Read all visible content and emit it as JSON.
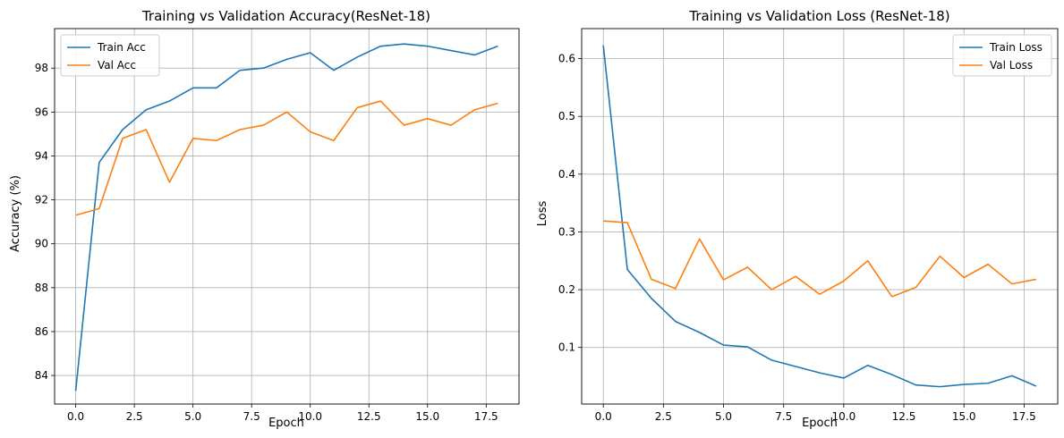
{
  "colors": {
    "train": "#1f77b4",
    "val": "#ff7f0e",
    "grid": "#b0b0b0"
  },
  "chart_data": [
    {
      "type": "line",
      "title": "Training vs Validation Accuracy(ResNet-18)",
      "xlabel": "Epoch",
      "ylabel": "Accuracy (%)",
      "x": [
        0,
        1,
        2,
        3,
        4,
        5,
        6,
        7,
        8,
        9,
        10,
        11,
        12,
        13,
        14,
        15,
        16,
        17,
        18
      ],
      "xlim": [
        -0.9,
        18.9
      ],
      "ylim": [
        82.7,
        99.8
      ],
      "xticks": [
        0,
        2.5,
        5,
        7.5,
        10,
        12.5,
        15,
        17.5
      ],
      "xtick_labels": [
        "0.0",
        "2.5",
        "5.0",
        "7.5",
        "10.0",
        "12.5",
        "15.0",
        "17.5"
      ],
      "yticks": [
        84,
        86,
        88,
        90,
        92,
        94,
        96,
        98
      ],
      "ytick_labels": [
        "84",
        "86",
        "88",
        "90",
        "92",
        "94",
        "96",
        "98"
      ],
      "grid": true,
      "legend_position": "top-left",
      "series": [
        {
          "name": "Train Acc",
          "values": [
            83.3,
            93.7,
            95.2,
            96.1,
            96.5,
            97.1,
            97.1,
            97.9,
            98.0,
            98.4,
            98.7,
            97.9,
            98.5,
            99.0,
            99.1,
            99.0,
            98.8,
            98.6,
            99.0
          ]
        },
        {
          "name": "Val Acc",
          "values": [
            91.3,
            91.6,
            94.8,
            95.2,
            92.8,
            94.8,
            94.7,
            95.2,
            95.4,
            96.0,
            95.1,
            94.7,
            96.2,
            96.5,
            95.4,
            95.7,
            95.4,
            96.1,
            96.4
          ]
        }
      ]
    },
    {
      "type": "line",
      "title": "Training vs Validation Loss (ResNet-18)",
      "xlabel": "Epoch",
      "ylabel": "Loss",
      "x": [
        0,
        1,
        2,
        3,
        4,
        5,
        6,
        7,
        8,
        9,
        10,
        11,
        12,
        13,
        14,
        15,
        16,
        17,
        18
      ],
      "xlim": [
        -0.9,
        18.9
      ],
      "ylim": [
        0.002,
        0.652
      ],
      "xticks": [
        0,
        2.5,
        5,
        7.5,
        10,
        12.5,
        15,
        17.5
      ],
      "xtick_labels": [
        "0.0",
        "2.5",
        "5.0",
        "7.5",
        "10.0",
        "12.5",
        "15.0",
        "17.5"
      ],
      "yticks": [
        0.1,
        0.2,
        0.3,
        0.4,
        0.5,
        0.6
      ],
      "ytick_labels": [
        "0.1",
        "0.2",
        "0.3",
        "0.4",
        "0.5",
        "0.6"
      ],
      "grid": true,
      "legend_position": "top-right",
      "series": [
        {
          "name": "Train Loss",
          "values": [
            0.623,
            0.235,
            0.185,
            0.145,
            0.126,
            0.104,
            0.101,
            0.078,
            0.067,
            0.056,
            0.047,
            0.069,
            0.053,
            0.035,
            0.032,
            0.036,
            0.038,
            0.051,
            0.033
          ]
        },
        {
          "name": "Val Loss",
          "values": [
            0.319,
            0.316,
            0.218,
            0.202,
            0.288,
            0.217,
            0.239,
            0.2,
            0.223,
            0.192,
            0.215,
            0.25,
            0.188,
            0.204,
            0.258,
            0.221,
            0.244,
            0.21,
            0.218
          ]
        }
      ]
    }
  ]
}
